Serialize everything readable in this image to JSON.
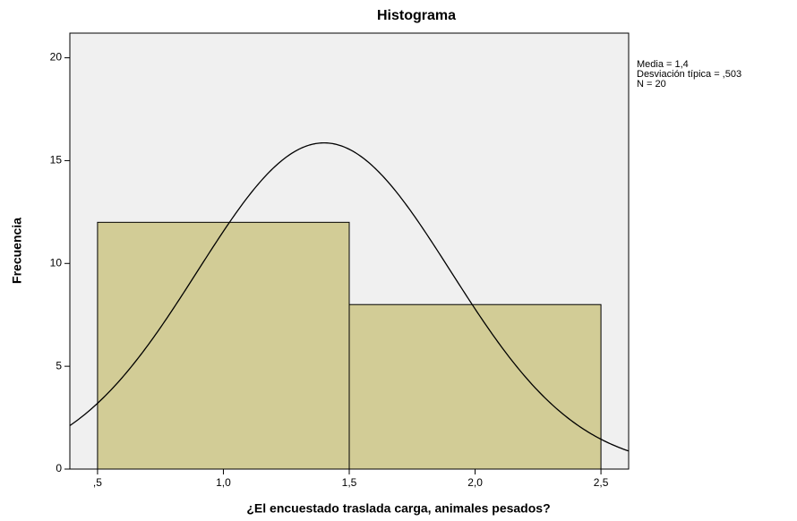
{
  "chart_data": {
    "type": "histogram",
    "title": "Histograma",
    "x_label": "¿El encuestado traslada carga, animales pesados?",
    "y_label": "Frecuencia",
    "bins": [
      0.5,
      1.5,
      2.5
    ],
    "values": [
      12,
      8
    ],
    "color": "#d2cc96",
    "xlim": [
      0.39,
      2.61
    ],
    "ylim": [
      0,
      21.2
    ],
    "xticks": [
      {
        "value": 0.5,
        "label": ",5"
      },
      {
        "value": 1.0,
        "label": "1,0"
      },
      {
        "value": 1.5,
        "label": "1,5"
      },
      {
        "value": 2.0,
        "label": "2,0"
      },
      {
        "value": 2.5,
        "label": "2,5"
      }
    ],
    "yticks": [
      0,
      5,
      10,
      15,
      20
    ],
    "normal_curve": {
      "mean": 1.4,
      "sd": 0.503,
      "n": 20
    },
    "annotations": [
      "Media = 1,4",
      "Desviación típica = ,503",
      "N = 20"
    ]
  }
}
